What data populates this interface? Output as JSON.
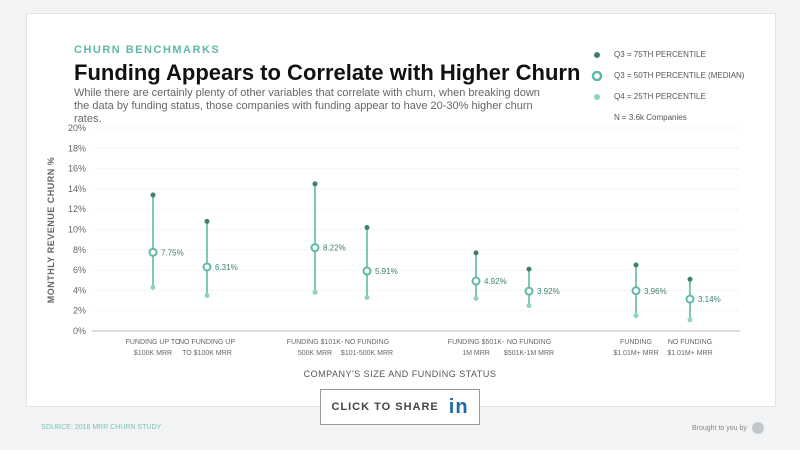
{
  "header": {
    "eyebrow": "CHURN BENCHMARKS",
    "title": "Funding Appears to Correlate with Higher Churn",
    "subtitle": "While there are certainly plenty of other variables that correlate with churn, when breaking down the data by funding status, those companies with funding appear to have 20-30% higher churn rates."
  },
  "legend": {
    "items": [
      "Q3 = 75TH PERCENTILE",
      "Q3 = 50TH PERCENTILE (MEDIAN)",
      "Q4 = 25TH PERCENTILE"
    ],
    "note": "N = 3.6k Companies"
  },
  "colors": {
    "dark": "#3f7f72",
    "mid": "#5fb9a8",
    "light": "#8fd3c4",
    "line": "#7cc9b8"
  },
  "chart_data": {
    "type": "range",
    "xlabel": "COMPANY'S SIZE AND FUNDING STATUS",
    "ylabel": "MONTHLY REVENUE CHURN %",
    "ylim": [
      0,
      20
    ],
    "yticks": [
      "0%",
      "2%",
      "4%",
      "6%",
      "8%",
      "10%",
      "12%",
      "14%",
      "16%",
      "18%",
      "20%"
    ],
    "grid": true,
    "categories": [
      [
        "FUNDING UP TO",
        "$100K MRR"
      ],
      [
        "NO FUNDING UP",
        "TO $100K MRR"
      ],
      [
        "FUNDING  $101K-",
        "500K MRR"
      ],
      [
        "NO FUNDING",
        "$101-500K MRR"
      ],
      [
        "FUNDING  $501K-",
        "1M MRR"
      ],
      [
        "NO FUNDING",
        "$501K-1M MRR"
      ],
      [
        "FUNDING",
        "$1.01M+ MRR"
      ],
      [
        "NO FUNDING",
        "$1.01M+ MRR"
      ]
    ],
    "p75": [
      13.4,
      10.8,
      14.5,
      10.2,
      7.7,
      6.1,
      6.5,
      5.1
    ],
    "median": [
      7.75,
      6.31,
      8.22,
      5.91,
      4.92,
      3.92,
      3.96,
      3.14
    ],
    "median_labels": [
      "7.75%",
      "6.31%",
      "8.22%",
      "5.91%",
      "4.92%",
      "3.92%",
      "3.96%",
      "3.14%"
    ],
    "p25": [
      4.3,
      3.5,
      3.8,
      3.3,
      3.2,
      2.5,
      1.5,
      1.1
    ]
  },
  "share": {
    "label": "CLICK TO SHARE",
    "icon": "linkedin-icon",
    "icon_text": "in"
  },
  "footer": {
    "source": "SOURCE: 2018 MRR CHURN STUDY",
    "brought": "Brought to you by"
  }
}
